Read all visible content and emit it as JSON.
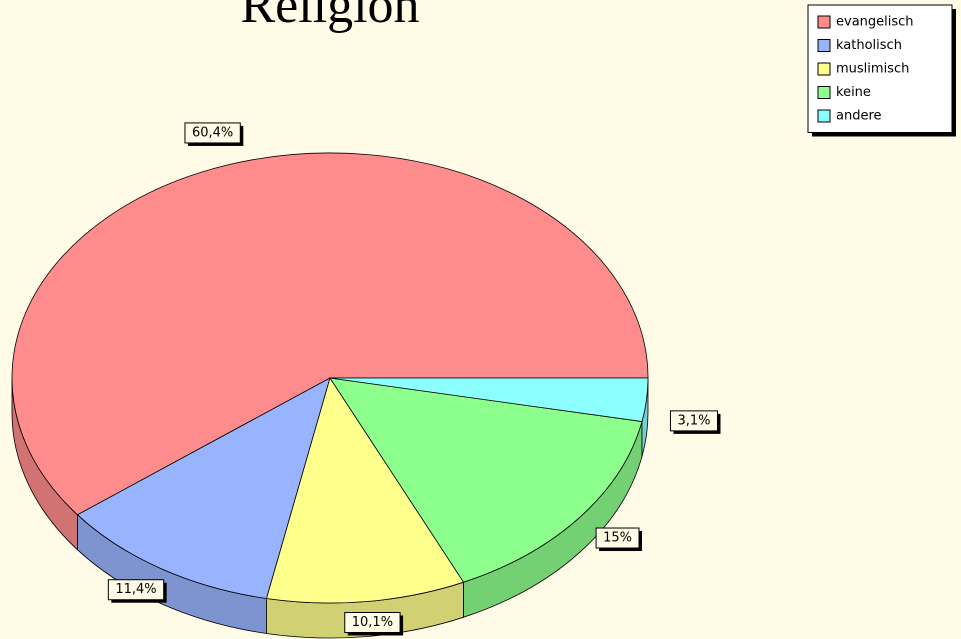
{
  "chart_data": {
    "type": "pie",
    "title": "Religion",
    "categories": [
      "evangelisch",
      "katholisch",
      "muslimisch",
      "keine",
      "andere"
    ],
    "values": [
      60.4,
      11.4,
      10.1,
      15,
      3.1
    ],
    "value_labels": [
      "60,4%",
      "11,4%",
      "10,1%",
      "15%",
      "3,1%"
    ],
    "colors": [
      "#ff8c8c",
      "#99b4ff",
      "#ffff8c",
      "#8cff8c",
      "#8cffff"
    ],
    "legend": "top-right"
  }
}
